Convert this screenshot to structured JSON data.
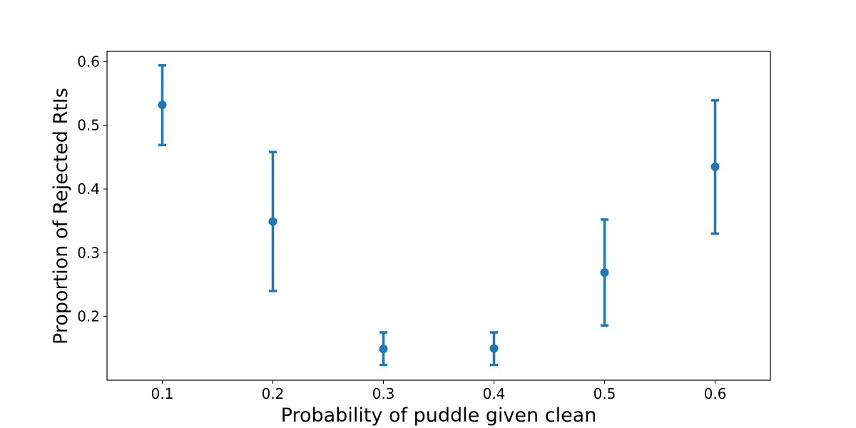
{
  "chart_data": {
    "type": "scatter",
    "title": "",
    "xlabel": "Probability of puddle given clean",
    "ylabel": "Proportion of Rejected RtIs",
    "xlim": [
      0.05,
      0.65
    ],
    "ylim": [
      0.1,
      0.616
    ],
    "x_ticks": [
      0.1,
      0.2,
      0.3,
      0.4,
      0.5,
      0.6
    ],
    "x_tick_labels": [
      "0.1",
      "0.2",
      "0.3",
      "0.4",
      "0.5",
      "0.6"
    ],
    "y_ticks": [
      0.2,
      0.3,
      0.4,
      0.5,
      0.6
    ],
    "y_tick_labels": [
      "0.2",
      "0.3",
      "0.4",
      "0.5",
      "0.6"
    ],
    "grid": false,
    "color": "#1f77b4",
    "points": [
      {
        "x": 0.1,
        "y": 0.532,
        "err_low": 0.469,
        "err_high": 0.594
      },
      {
        "x": 0.2,
        "y": 0.349,
        "err_low": 0.24,
        "err_high": 0.458
      },
      {
        "x": 0.3,
        "y": 0.149,
        "err_low": 0.124,
        "err_high": 0.175
      },
      {
        "x": 0.4,
        "y": 0.15,
        "err_low": 0.124,
        "err_high": 0.175
      },
      {
        "x": 0.5,
        "y": 0.269,
        "err_low": 0.186,
        "err_high": 0.352
      },
      {
        "x": 0.6,
        "y": 0.435,
        "err_low": 0.33,
        "err_high": 0.539
      }
    ]
  }
}
